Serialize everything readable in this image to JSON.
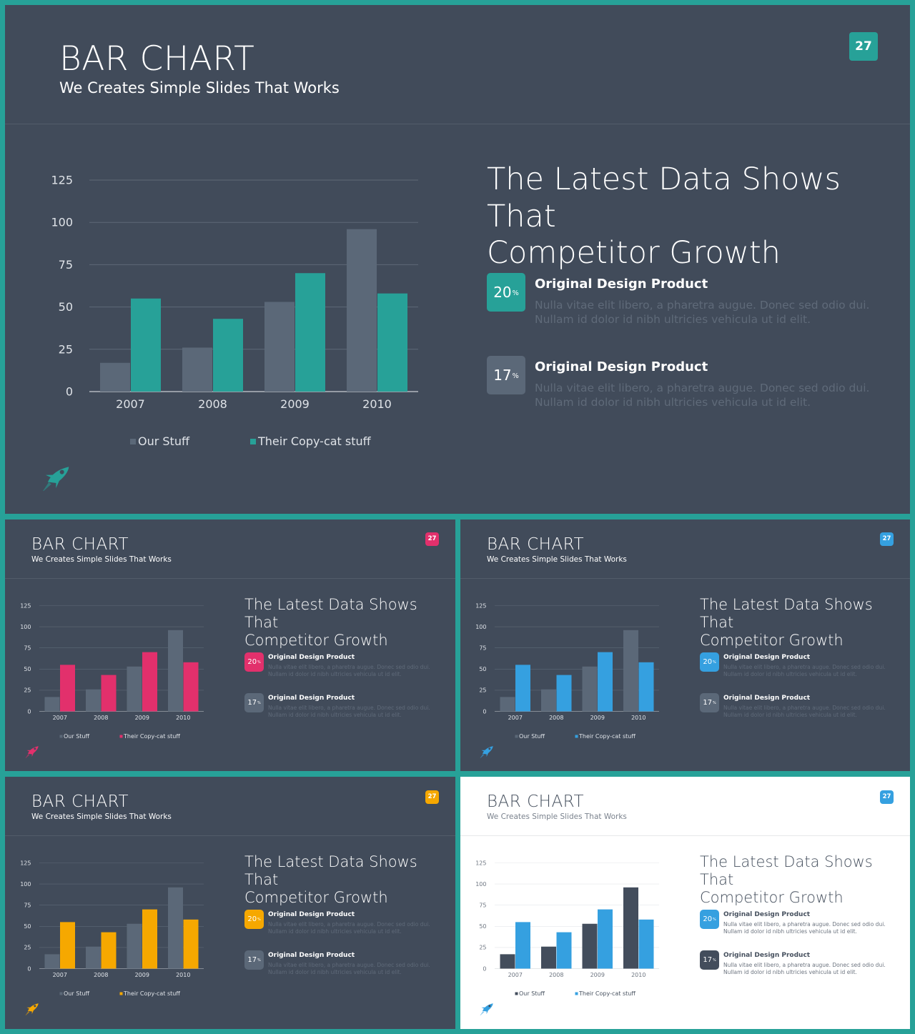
{
  "slide": {
    "title": "BAR CHART",
    "subtitle": "We Creates Simple Slides That Works",
    "page_number": "27",
    "heading_line1": "The Latest Data Shows That",
    "heading_line2": "Competitor Growth",
    "stats": [
      {
        "value": "20",
        "unit": "%",
        "title": "Original Design Product",
        "body_line1": "Nulla vitae elit libero, a pharetra augue. Donec sed odio dui.",
        "body_line2": "Nullam id dolor id nibh ultricies vehicula ut id elit."
      },
      {
        "value": "17",
        "unit": "%",
        "title": "Original Design Product",
        "body_line1": "Nulla vitae elit libero, a pharetra augue. Donec sed odio dui.",
        "body_line2": "Nullam id dolor id nibh ultricies vehicula ut id elit."
      }
    ]
  },
  "themes": {
    "main": {
      "accent": "#27a198",
      "ours": "#5b6878"
    },
    "pink": {
      "accent": "#e2306c",
      "ours": "#5b6878"
    },
    "blue": {
      "accent": "#35a0e0",
      "ours": "#5b6878"
    },
    "yellow": {
      "accent": "#f6a800",
      "ours": "#5b6878"
    },
    "white": {
      "accent": "#35a0e0",
      "ours": "#434d5c"
    }
  },
  "chart_data": {
    "type": "bar",
    "categories": [
      "2007",
      "2008",
      "2009",
      "2010"
    ],
    "series": [
      {
        "name": "Our Stuff",
        "values": [
          17,
          26,
          53,
          96
        ]
      },
      {
        "name": "Their Copy-cat stuff",
        "values": [
          55,
          43,
          70,
          58
        ]
      }
    ],
    "ylim": [
      0,
      125
    ],
    "yticks": [
      "0",
      "25",
      "50",
      "75",
      "100",
      "125"
    ],
    "grid": true,
    "legend": "bottom"
  }
}
